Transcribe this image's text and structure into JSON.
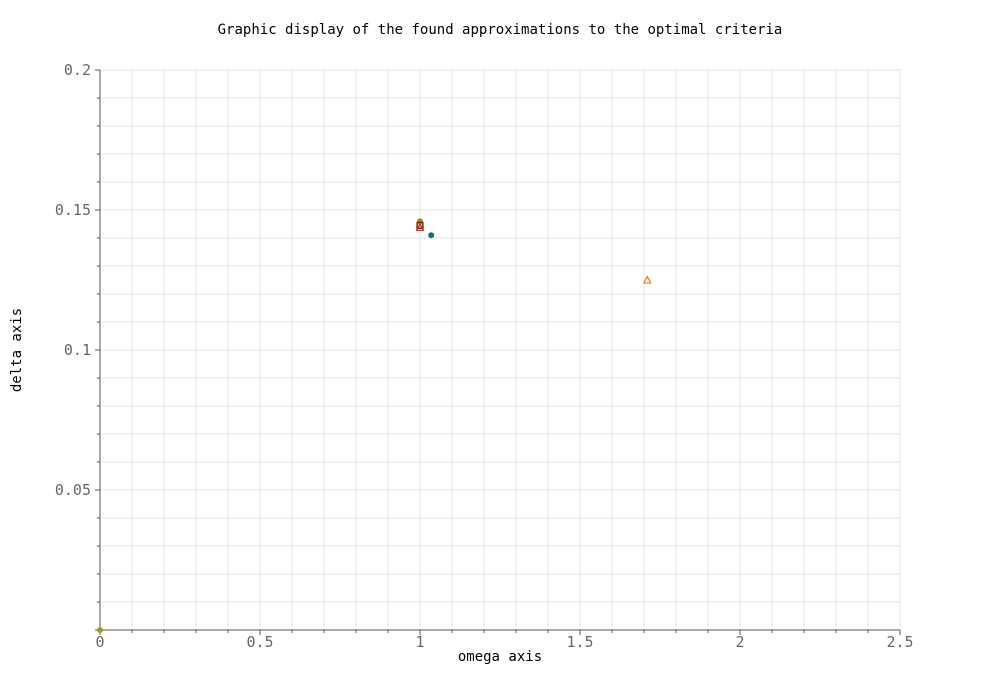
{
  "chart_data": {
    "type": "scatter",
    "title": "Graphic display of the found approximations to the optimal criteria",
    "xlabel": "omega axis",
    "ylabel": "delta axis",
    "xlim": [
      0,
      2.5
    ],
    "ylim": [
      0,
      0.2
    ],
    "x_ticks": [
      "0",
      "0.5",
      "1",
      "1.5",
      "2",
      "2.5"
    ],
    "y_ticks": [
      "0.05",
      "0.1",
      "0.15",
      "0.2"
    ],
    "grid": true,
    "points": [
      {
        "x": 0.0,
        "y": 0.0,
        "marker": "circle",
        "color": "#9a9a1e"
      },
      {
        "x": 1.0,
        "y": 0.146,
        "marker": "circle",
        "color": "#9a9a1e"
      },
      {
        "x": 1.0,
        "y": 0.145,
        "marker": "triangle",
        "color": "#6b8e23"
      },
      {
        "x": 1.0,
        "y": 0.1445,
        "marker": "square",
        "color": "#8b1a1a"
      },
      {
        "x": 1.0,
        "y": 0.1438,
        "marker": "triangle",
        "color": "#b22222"
      },
      {
        "x": 1.035,
        "y": 0.141,
        "marker": "circle",
        "color": "#1f6f6f"
      },
      {
        "x": 1.71,
        "y": 0.125,
        "marker": "triangle",
        "color": "#e07020"
      }
    ]
  }
}
